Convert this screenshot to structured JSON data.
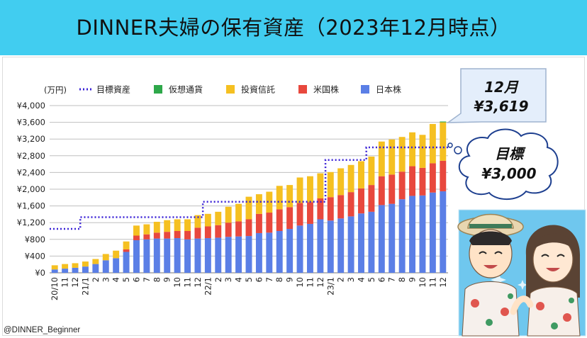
{
  "header": {
    "title": "DINNER夫婦の保有資産（2023年12月時点）"
  },
  "footer": {
    "credit": "@DINNER_Beginner"
  },
  "callouts": {
    "current_month": "12月",
    "current_value": "¥3,619",
    "target_label": "目標",
    "target_value": "¥3,000"
  },
  "chart_data": {
    "type": "bar",
    "stacked": true,
    "unit_label": "(万円)",
    "ylim": [
      0,
      4000
    ],
    "y_ticks": [
      0,
      400,
      800,
      1200,
      1600,
      2000,
      2400,
      2800,
      3200,
      3600,
      4000
    ],
    "y_tick_labels": [
      "¥0",
      "¥400",
      "¥800",
      "¥1,200",
      "¥1,600",
      "¥2,000",
      "¥2,400",
      "¥2,800",
      "¥3,200",
      "¥3,600",
      "¥4,000"
    ],
    "grid": true,
    "legend_position": "top",
    "categories": [
      "20/10",
      "11",
      "12",
      "21/1",
      "2",
      "3",
      "4",
      "5",
      "6",
      "7",
      "8",
      "9",
      "10",
      "11",
      "12",
      "22/1",
      "2",
      "3",
      "4",
      "5",
      "6",
      "7",
      "8",
      "9",
      "10",
      "11",
      "12",
      "23/1",
      "2",
      "3",
      "4",
      "5",
      "6",
      "7",
      "8",
      "9",
      "10",
      "11",
      "12"
    ],
    "series": [
      {
        "name": "日本株",
        "color": "#5b7fe6",
        "values": [
          80,
          100,
          120,
          150,
          210,
          300,
          350,
          500,
          780,
          800,
          820,
          820,
          830,
          800,
          820,
          830,
          840,
          860,
          870,
          880,
          950,
          960,
          1000,
          1050,
          1130,
          1170,
          1280,
          1250,
          1300,
          1350,
          1420,
          1460,
          1620,
          1650,
          1760,
          1840,
          1850,
          1920,
          1950
        ]
      },
      {
        "name": "米国株",
        "color": "#e8483d",
        "values": [
          0,
          0,
          0,
          0,
          0,
          0,
          0,
          60,
          110,
          120,
          140,
          160,
          170,
          200,
          260,
          280,
          300,
          340,
          360,
          400,
          460,
          480,
          520,
          520,
          540,
          520,
          500,
          560,
          560,
          580,
          600,
          640,
          690,
          700,
          660,
          710,
          660,
          700,
          730
        ]
      },
      {
        "name": "投資信託",
        "color": "#f5c021",
        "values": [
          100,
          110,
          110,
          120,
          120,
          150,
          180,
          190,
          240,
          240,
          260,
          280,
          280,
          280,
          300,
          300,
          320,
          380,
          420,
          540,
          470,
          500,
          560,
          530,
          610,
          620,
          600,
          600,
          640,
          650,
          650,
          680,
          830,
          840,
          830,
          810,
          790,
          940,
          920
        ]
      },
      {
        "name": "仮想通貨",
        "color": "#2ea84a",
        "values": [
          0,
          0,
          0,
          0,
          0,
          0,
          0,
          0,
          0,
          0,
          0,
          0,
          0,
          0,
          0,
          0,
          0,
          0,
          0,
          0,
          0,
          0,
          0,
          0,
          0,
          0,
          0,
          0,
          0,
          0,
          0,
          0,
          0,
          0,
          0,
          0,
          0,
          0,
          19
        ]
      }
    ],
    "target": {
      "name": "目標資産",
      "color": "#3a22d6",
      "style": "dotted",
      "values": [
        1050,
        1050,
        1050,
        1330,
        1330,
        1330,
        1330,
        1330,
        1330,
        1330,
        1330,
        1330,
        1330,
        1330,
        1330,
        1700,
        1700,
        1700,
        1700,
        1700,
        1700,
        1700,
        1700,
        1700,
        1700,
        1700,
        1700,
        2700,
        2700,
        2700,
        2700,
        3000,
        3000,
        3000,
        3000,
        3000,
        3000,
        3000,
        3000
      ]
    },
    "legend_order": [
      "目標資産",
      "仮想通貨",
      "投資信託",
      "米国株",
      "日本株"
    ]
  }
}
